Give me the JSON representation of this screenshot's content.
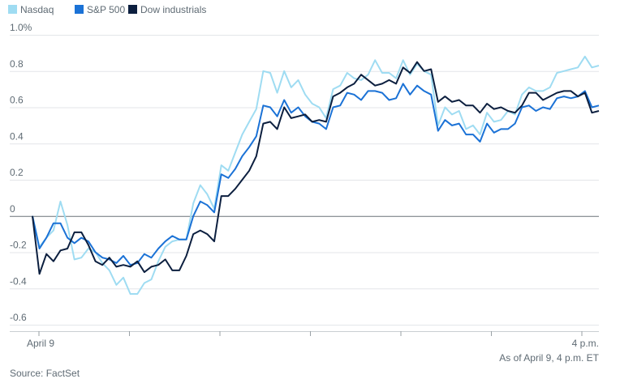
{
  "chart_data": {
    "type": "line",
    "title": "",
    "xlabel": "",
    "ylabel": "",
    "ylim": [
      -0.6,
      1.0
    ],
    "yticks": [
      -0.6,
      -0.4,
      -0.2,
      0,
      0.2,
      0.4,
      0.6,
      0.8,
      1.0
    ],
    "ytick_labels": [
      "-0.6",
      "-0.4",
      "-0.2",
      "0",
      "0.2",
      "0.4",
      "0.6",
      "0.8",
      "1.0%"
    ],
    "x_start_label": "April 9",
    "x_end_label": "4 p.m.",
    "grid": true,
    "legend_position": "top-left",
    "note": "As of April 9, 4 p.m. ET",
    "source": "Source: FactSet",
    "series": [
      {
        "name": "Nasdaq",
        "color": "#9fdcf2",
        "values": [
          0.0,
          -0.17,
          -0.12,
          -0.08,
          0.08,
          -0.05,
          -0.24,
          -0.23,
          -0.18,
          -0.2,
          -0.26,
          -0.3,
          -0.38,
          -0.34,
          -0.43,
          -0.43,
          -0.37,
          -0.35,
          -0.25,
          -0.17,
          -0.14,
          -0.13,
          -0.13,
          0.07,
          0.17,
          0.12,
          0.04,
          0.28,
          0.25,
          0.35,
          0.45,
          0.52,
          0.59,
          0.8,
          0.79,
          0.68,
          0.8,
          0.71,
          0.75,
          0.67,
          0.62,
          0.6,
          0.54,
          0.7,
          0.72,
          0.79,
          0.76,
          0.75,
          0.78,
          0.86,
          0.79,
          0.79,
          0.76,
          0.86,
          0.78,
          0.84,
          0.8,
          0.78,
          0.5,
          0.6,
          0.56,
          0.58,
          0.48,
          0.5,
          0.45,
          0.57,
          0.52,
          0.53,
          0.58,
          0.56,
          0.67,
          0.71,
          0.69,
          0.69,
          0.71,
          0.79,
          0.8,
          0.81,
          0.82,
          0.88,
          0.82,
          0.83
        ]
      },
      {
        "name": "S&P 500",
        "color": "#1b72d6",
        "values": [
          0.0,
          -0.18,
          -0.12,
          -0.04,
          -0.04,
          -0.12,
          -0.15,
          -0.12,
          -0.14,
          -0.2,
          -0.23,
          -0.24,
          -0.26,
          -0.22,
          -0.27,
          -0.26,
          -0.21,
          -0.23,
          -0.18,
          -0.14,
          -0.11,
          -0.13,
          -0.13,
          0.0,
          0.08,
          0.06,
          0.02,
          0.23,
          0.21,
          0.26,
          0.33,
          0.38,
          0.44,
          0.61,
          0.6,
          0.55,
          0.64,
          0.57,
          0.6,
          0.55,
          0.52,
          0.51,
          0.48,
          0.6,
          0.61,
          0.68,
          0.67,
          0.64,
          0.69,
          0.69,
          0.68,
          0.64,
          0.65,
          0.73,
          0.67,
          0.72,
          0.69,
          0.67,
          0.47,
          0.53,
          0.5,
          0.51,
          0.45,
          0.45,
          0.41,
          0.51,
          0.46,
          0.48,
          0.48,
          0.51,
          0.6,
          0.61,
          0.58,
          0.6,
          0.59,
          0.65,
          0.66,
          0.65,
          0.66,
          0.69,
          0.6,
          0.61
        ]
      },
      {
        "name": "Dow industrials",
        "color": "#0c1f3f",
        "values": [
          0.0,
          -0.32,
          -0.21,
          -0.25,
          -0.19,
          -0.18,
          -0.09,
          -0.09,
          -0.16,
          -0.25,
          -0.27,
          -0.23,
          -0.28,
          -0.27,
          -0.28,
          -0.25,
          -0.31,
          -0.28,
          -0.27,
          -0.24,
          -0.3,
          -0.3,
          -0.22,
          -0.1,
          -0.08,
          -0.1,
          -0.14,
          0.11,
          0.11,
          0.15,
          0.2,
          0.25,
          0.33,
          0.51,
          0.52,
          0.48,
          0.6,
          0.54,
          0.55,
          0.56,
          0.52,
          0.53,
          0.52,
          0.66,
          0.68,
          0.71,
          0.73,
          0.78,
          0.75,
          0.72,
          0.73,
          0.75,
          0.73,
          0.82,
          0.79,
          0.85,
          0.8,
          0.81,
          0.63,
          0.66,
          0.63,
          0.64,
          0.61,
          0.61,
          0.57,
          0.62,
          0.59,
          0.6,
          0.58,
          0.57,
          0.61,
          0.68,
          0.68,
          0.64,
          0.66,
          0.68,
          0.69,
          0.69,
          0.66,
          0.68,
          0.57,
          0.58
        ]
      }
    ]
  }
}
